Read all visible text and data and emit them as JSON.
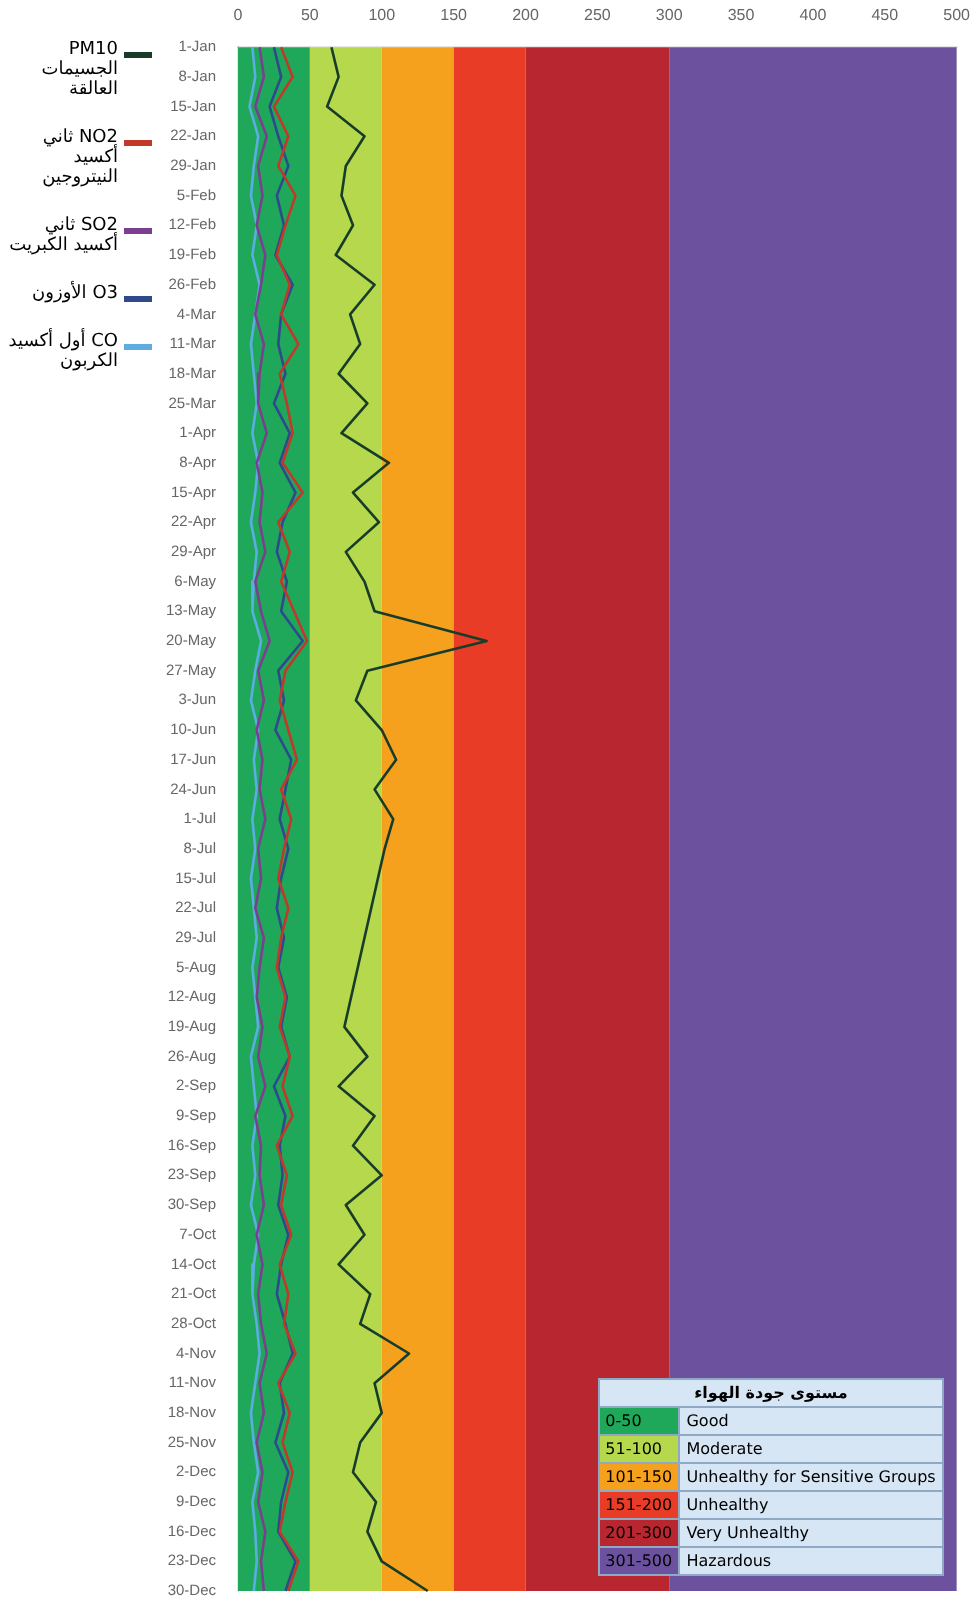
{
  "chart_data": {
    "type": "line",
    "orientation": "horizontal",
    "legend": "left",
    "grid": false,
    "marker": "none",
    "line_style": "solid",
    "categories": [
      "1-Jan",
      "8-Jan",
      "15-Jan",
      "22-Jan",
      "29-Jan",
      "5-Feb",
      "12-Feb",
      "19-Feb",
      "26-Feb",
      "4-Mar",
      "11-Mar",
      "18-Mar",
      "25-Mar",
      "1-Apr",
      "8-Apr",
      "15-Apr",
      "22-Apr",
      "29-Apr",
      "6-May",
      "13-May",
      "20-May",
      "27-May",
      "3-Jun",
      "10-Jun",
      "17-Jun",
      "24-Jun",
      "1-Jul",
      "8-Jul",
      "15-Jul",
      "22-Jul",
      "29-Jul",
      "5-Aug",
      "12-Aug",
      "19-Aug",
      "26-Aug",
      "2-Sep",
      "9-Sep",
      "16-Sep",
      "23-Sep",
      "30-Sep",
      "7-Oct",
      "14-Oct",
      "21-Oct",
      "28-Oct",
      "4-Nov",
      "11-Nov",
      "18-Nov",
      "25-Nov",
      "2-Dec",
      "9-Dec",
      "16-Dec",
      "23-Dec",
      "30-Dec"
    ],
    "xlim": [
      0,
      500
    ],
    "xticks": [
      0,
      50,
      100,
      150,
      200,
      250,
      300,
      350,
      400,
      450,
      500
    ],
    "series": [
      {
        "name": "PM10 الجسيمات العالقة",
        "color": "#173d2a",
        "values": [
          65,
          70,
          62,
          88,
          75,
          72,
          80,
          68,
          95,
          78,
          85,
          70,
          90,
          72,
          105,
          80,
          98,
          75,
          88,
          95,
          173,
          90,
          82,
          100,
          110,
          95,
          108,
          102,
          null,
          null,
          null,
          null,
          null,
          74,
          90,
          70,
          95,
          80,
          100,
          75,
          88,
          70,
          92,
          85,
          119,
          95,
          100,
          85,
          80,
          96,
          90,
          100,
          132
        ]
      },
      {
        "name": "NO2 ثاني أكسيد النيتروجين",
        "color": "#c0392b",
        "values": [
          30,
          38,
          25,
          35,
          28,
          40,
          33,
          27,
          36,
          30,
          42,
          29,
          34,
          38,
          31,
          45,
          28,
          36,
          30,
          39,
          48,
          33,
          29,
          35,
          41,
          30,
          37,
          32,
          28,
          35,
          30,
          27,
          33,
          29,
          36,
          31,
          38,
          27,
          34,
          30,
          37,
          29,
          35,
          32,
          40,
          28,
          36,
          31,
          38,
          33,
          29,
          42,
          35
        ]
      },
      {
        "name": "SO2 ثاني أكسيد الكبريت",
        "color": "#7b3f8f",
        "values": [
          15,
          18,
          12,
          20,
          14,
          17,
          13,
          19,
          16,
          12,
          18,
          15,
          14,
          20,
          13,
          17,
          15,
          19,
          12,
          16,
          22,
          14,
          18,
          13,
          17,
          15,
          19,
          14,
          16,
          12,
          18,
          15,
          13,
          17,
          14,
          19,
          12,
          16,
          15,
          18,
          13,
          17,
          14,
          16,
          20,
          15,
          18,
          13,
          17,
          14,
          19,
          16,
          18
        ]
      },
      {
        "name": "O3 الأوزون",
        "color": "#2e4a8c",
        "values": [
          25,
          30,
          22,
          28,
          35,
          27,
          32,
          26,
          38,
          30,
          28,
          33,
          25,
          36,
          29,
          40,
          31,
          27,
          34,
          30,
          45,
          28,
          32,
          26,
          37,
          33,
          29,
          35,
          30,
          27,
          32,
          28,
          34,
          30,
          36,
          25,
          33,
          29,
          31,
          28,
          35,
          30,
          27,
          33,
          38,
          29,
          32,
          26,
          35,
          30,
          28,
          40,
          33
        ]
      },
      {
        "name": "CO أول أكسيد الكربون",
        "color": "#5dade2",
        "values": [
          10,
          12,
          8,
          14,
          11,
          9,
          13,
          10,
          15,
          12,
          9,
          11,
          13,
          10,
          14,
          12,
          9,
          13,
          11,
          10,
          16,
          12,
          9,
          14,
          11,
          13,
          10,
          12,
          9,
          11,
          13,
          10,
          12,
          14,
          9,
          11,
          13,
          10,
          12,
          9,
          14,
          11,
          10,
          13,
          15,
          12,
          9,
          11,
          14,
          10,
          12,
          13,
          11
        ]
      }
    ],
    "bands": [
      {
        "axis": "x",
        "from": 0,
        "to": 50,
        "color": "#1fa85a"
      },
      {
        "axis": "x",
        "from": 50,
        "to": 100,
        "color": "#b6d84c"
      },
      {
        "axis": "x",
        "from": 100,
        "to": 150,
        "color": "#f6a11d"
      },
      {
        "axis": "x",
        "from": 150,
        "to": 200,
        "color": "#e83c26"
      },
      {
        "axis": "x",
        "from": 200,
        "to": 300,
        "color": "#b8262f"
      },
      {
        "axis": "x",
        "from": 300,
        "to": 500,
        "color": "#6b519e"
      }
    ],
    "annotations": [
      "مستوى جودة الهواء",
      "0-50",
      "Good",
      "51-100",
      "Moderate",
      "101-150",
      "Unhealthy for Sensitive Groups",
      "151-200",
      "Unhealthy",
      "201-300",
      "Very Unhealthy",
      "301-500",
      "Hazardous"
    ]
  }
}
